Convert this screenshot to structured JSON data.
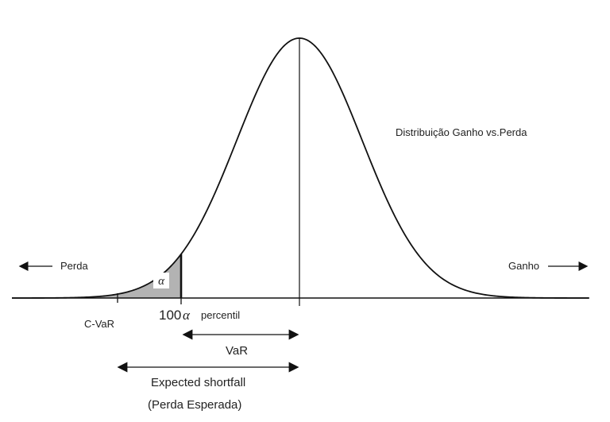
{
  "diagram": {
    "distribution_label": "Distribuição Ganho vs.Perda",
    "loss_label": "Perda",
    "gain_label": "Ganho",
    "alpha_symbol": "α",
    "percentile_prefix": "100",
    "percentile_symbol": "α",
    "percentile_label": "percentil",
    "cvar_label": "C-VaR",
    "var_label": "VaR",
    "expected_shortfall_label": "Expected shortfall",
    "expected_shortfall_subtitle": "(Perda Esperada)"
  }
}
